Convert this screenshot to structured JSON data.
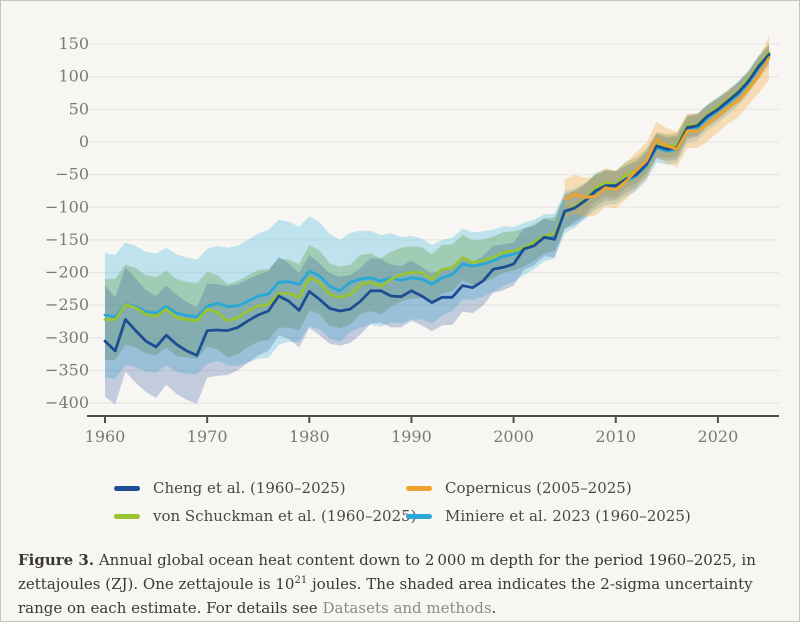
{
  "figure": {
    "caption_label": "Figure 3.",
    "caption_text_1": " Annual global ocean heat content down to 2 000 m depth for the period 1960–2025, in zettajoules (ZJ). One zettajoule is 10",
    "caption_sup": "21",
    "caption_text_2": " joules. The shaded area indicates the 2-sigma uncertainty range on each estimate. For details see ",
    "caption_link_text": "Datasets and methods",
    "caption_text_3": "."
  },
  "colors": {
    "background": "#f7f6f3",
    "grid": "#e9e7e3",
    "axis": "#4f4f4d",
    "tick_text": "#7a7a78",
    "caption_text": "#3b3834",
    "caption_link": "#8d8a84"
  },
  "chart_data": {
    "type": "line",
    "title": "",
    "y_unit": "ZJ",
    "grid": "horizontal",
    "legend_position": "bottom",
    "ylim": [
      -420,
      170
    ],
    "xlim": [
      1958.5,
      2026
    ],
    "yticks": [
      150,
      100,
      50,
      0,
      -50,
      -100,
      -150,
      -200,
      -250,
      -300,
      -350,
      -400
    ],
    "xticks": [
      1960,
      1970,
      1980,
      1990,
      2000,
      2010,
      2020
    ],
    "x": [
      1960,
      1961,
      1962,
      1963,
      1964,
      1965,
      1966,
      1967,
      1968,
      1969,
      1970,
      1971,
      1972,
      1973,
      1974,
      1975,
      1976,
      1977,
      1978,
      1979,
      1980,
      1981,
      1982,
      1983,
      1984,
      1985,
      1986,
      1987,
      1988,
      1989,
      1990,
      1991,
      1992,
      1993,
      1994,
      1995,
      1996,
      1997,
      1998,
      1999,
      2000,
      2001,
      2002,
      2003,
      2004,
      2005,
      2006,
      2007,
      2008,
      2009,
      2010,
      2011,
      2012,
      2013,
      2014,
      2015,
      2016,
      2017,
      2018,
      2019,
      2020,
      2021,
      2022,
      2023,
      2024,
      2025
    ],
    "legend": [
      {
        "id": "cheng",
        "label": "Cheng et al. (1960–2025)"
      },
      {
        "id": "copernicus",
        "label": "Copernicus (2005–2025)"
      },
      {
        "id": "schuckman",
        "label": "von Schuckman et al. (1960–2025)"
      },
      {
        "id": "miniere",
        "label": "Miniere et al. 2023 (1960–2025)"
      }
    ],
    "series": [
      {
        "id": "miniere",
        "name": "Miniere et al. 2023 (1960–2025)",
        "color": "#29a7d7",
        "band_color": "rgba(72,186,224,0.32)",
        "start": 1960,
        "values": [
          -265,
          -268,
          -248,
          -252,
          -260,
          -262,
          -252,
          -262,
          -266,
          -268,
          -252,
          -247,
          -252,
          -251,
          -244,
          -236,
          -233,
          -215,
          -214,
          -218,
          -198,
          -205,
          -221,
          -228,
          -215,
          -210,
          -208,
          -213,
          -208,
          -212,
          -208,
          -210,
          -218,
          -208,
          -203,
          -187,
          -190,
          -187,
          -182,
          -175,
          -172,
          -164,
          -157,
          -147,
          -144,
          -108,
          -101,
          -90,
          -78,
          -70,
          -70,
          -60,
          -52,
          -37,
          -9,
          -14,
          -11,
          19,
          22,
          37,
          48,
          60,
          73,
          91,
          114,
          132
        ],
        "band_halfwidth": [
          95,
          95,
          94,
          93,
          92,
          91,
          90,
          90,
          89,
          88,
          88,
          88,
          90,
          92,
          94,
          96,
          98,
          96,
          92,
          88,
          84,
          82,
          80,
          78,
          76,
          74,
          72,
          70,
          68,
          66,
          64,
          62,
          60,
          58,
          56,
          54,
          52,
          50,
          48,
          46,
          42,
          40,
          38,
          36,
          34,
          32,
          30,
          28,
          27,
          26,
          25,
          24,
          23,
          22,
          22,
          21,
          21,
          20,
          20,
          19,
          19,
          18,
          18,
          17,
          17,
          16
        ]
      },
      {
        "id": "schuckman",
        "name": "von Schuckman et al. (1960–2025)",
        "color": "#99c431",
        "band_color": "rgba(118,170,105,0.42)",
        "start": 1960,
        "values": [
          -272,
          -272,
          -249,
          -254,
          -264,
          -267,
          -256,
          -269,
          -272,
          -274,
          -256,
          -261,
          -274,
          -269,
          -259,
          -251,
          -249,
          -232,
          -232,
          -238,
          -208,
          -215,
          -234,
          -238,
          -234,
          -218,
          -215,
          -221,
          -210,
          -203,
          -200,
          -200,
          -210,
          -195,
          -193,
          -177,
          -185,
          -182,
          -177,
          -169,
          -167,
          -162,
          -154,
          -144,
          -141,
          -108,
          -98,
          -88,
          -70,
          -62,
          -65,
          -50,
          -44,
          -29,
          -4,
          -6,
          -4,
          25,
          27,
          42,
          53,
          65,
          78,
          96,
          119,
          137
        ],
        "band_halfwidth": [
          62,
          62,
          61,
          61,
          60,
          60,
          59,
          59,
          58,
          58,
          57,
          57,
          56,
          56,
          55,
          55,
          54,
          53,
          52,
          51,
          50,
          49,
          48,
          47,
          46,
          45,
          44,
          43,
          42,
          41,
          40,
          39,
          38,
          37,
          36,
          35,
          34,
          33,
          32,
          31,
          30,
          29,
          28,
          27,
          26,
          25,
          24,
          23,
          22,
          21,
          21,
          20,
          20,
          19,
          19,
          18,
          18,
          17,
          17,
          16,
          16,
          15,
          15,
          14,
          14,
          14
        ]
      },
      {
        "id": "cheng",
        "name": "Cheng et al. (1960–2025)",
        "color": "#1d4e94",
        "band_color": "rgba(60,98,160,0.28)",
        "start": 1960,
        "values": [
          -305,
          -320,
          -272,
          -289,
          -305,
          -314,
          -296,
          -310,
          -320,
          -327,
          -289,
          -288,
          -289,
          -284,
          -274,
          -265,
          -259,
          -236,
          -244,
          -258,
          -229,
          -241,
          -255,
          -259,
          -256,
          -244,
          -228,
          -228,
          -236,
          -237,
          -228,
          -236,
          -246,
          -238,
          -238,
          -220,
          -223,
          -213,
          -195,
          -192,
          -187,
          -164,
          -159,
          -146,
          -149,
          -106,
          -101,
          -90,
          -75,
          -67,
          -67,
          -57,
          -50,
          -34,
          -6,
          -11,
          -9,
          22,
          25,
          40,
          50,
          63,
          76,
          93,
          116,
          134
        ],
        "band_halfwidth": [
          85,
          82,
          80,
          80,
          78,
          78,
          76,
          76,
          75,
          74,
          72,
          70,
          68,
          66,
          64,
          62,
          61,
          60,
          58,
          57,
          56,
          55,
          54,
          53,
          52,
          51,
          50,
          49,
          48,
          47,
          46,
          45,
          44,
          43,
          42,
          40,
          39,
          38,
          36,
          35,
          33,
          32,
          30,
          29,
          28,
          27,
          26,
          25,
          24,
          23,
          22,
          21,
          20,
          19,
          19,
          18,
          18,
          17,
          17,
          16,
          16,
          15,
          15,
          14,
          14,
          14
        ]
      },
      {
        "id": "copernicus",
        "name": "Copernicus (2005–2025)",
        "color": "#f0a22e",
        "band_color": "rgba(243,172,66,0.35)",
        "start": 2005,
        "values": [
          -87,
          -80,
          -85,
          -83,
          -70,
          -73,
          -60,
          -44,
          -29,
          4,
          -6,
          -11,
          17,
          17,
          27,
          40,
          53,
          63,
          81,
          101,
          129
        ],
        "band_halfwidth": [
          30,
          30,
          30,
          30,
          29,
          29,
          28,
          28,
          28,
          27,
          27,
          27,
          26,
          26,
          26,
          25,
          25,
          25,
          24,
          26,
          34
        ]
      }
    ]
  }
}
